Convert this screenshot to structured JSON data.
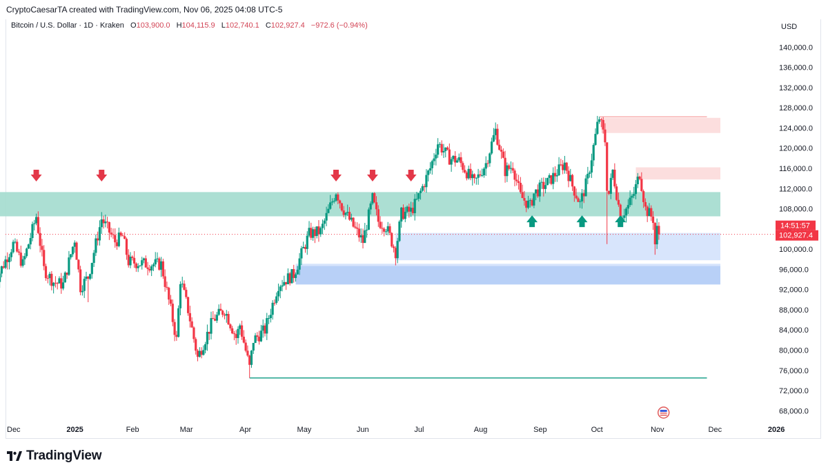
{
  "header": {
    "caption": "CryptoCaesarTA created with TradingView.com, Nov 06, 2025 04:08 UTC-5",
    "symbol": "Bitcoin / U.S. Dollar · 1D · Kraken",
    "open_label": "O",
    "open": "103,900.0",
    "high_label": "H",
    "high": "104,115.9",
    "low_label": "L",
    "low": "102,740.1",
    "close_label": "C",
    "close": "102,927.4",
    "change": "−972.6 (−0.94%)"
  },
  "brand": {
    "name": "TradingView",
    "logo_icon": "tradingview-logo-icon"
  },
  "colors": {
    "up": "#089981",
    "down": "#f23645",
    "resistance_zone": "#a8ddd1",
    "supply_zone": "#fcdcdc",
    "demand_zone": "#d6e4fc",
    "demand_zone_strong": "#b4cdf7",
    "level_line": "#089981",
    "last_price": "#f23645"
  },
  "chart_data": {
    "type": "candlestick",
    "title": "Bitcoin / U.S. Dollar · 1D · Kraken",
    "currency_label": "USD",
    "x_range": [
      "2024-12-01",
      "2026-01-05"
    ],
    "ylim": [
      66000,
      142500
    ],
    "y_ticks": [
      68000,
      72000,
      76000,
      80000,
      84000,
      88000,
      92000,
      96000,
      100000,
      104000,
      108000,
      112000,
      116000,
      120000,
      124000,
      128000,
      132000,
      136000,
      140000
    ],
    "y_tick_labels": [
      "68,000.0",
      "72,000.0",
      "76,000.0",
      "80,000.0",
      "84,000.0",
      "88,000.0",
      "92,000.0",
      "96,000.0",
      "100,000.0",
      "104,000.0",
      "108,000.0",
      "112,000.0",
      "116,000.0",
      "120,000.0",
      "124,000.0",
      "128,000.0",
      "132,000.0",
      "136,000.0",
      "140,000.0"
    ],
    "x_ticks": [
      {
        "date": "2024-12-01",
        "label": "Dec",
        "bold": false
      },
      {
        "date": "2025-01-01",
        "label": "2025",
        "bold": true
      },
      {
        "date": "2025-02-01",
        "label": "Feb",
        "bold": false
      },
      {
        "date": "2025-03-01",
        "label": "Mar",
        "bold": false
      },
      {
        "date": "2025-04-01",
        "label": "Apr",
        "bold": false
      },
      {
        "date": "2025-05-01",
        "label": "May",
        "bold": false
      },
      {
        "date": "2025-06-01",
        "label": "Jun",
        "bold": false
      },
      {
        "date": "2025-07-01",
        "label": "Jul",
        "bold": false
      },
      {
        "date": "2025-08-01",
        "label": "Aug",
        "bold": false
      },
      {
        "date": "2025-09-01",
        "label": "Sep",
        "bold": false
      },
      {
        "date": "2025-10-01",
        "label": "Oct",
        "bold": false
      },
      {
        "date": "2025-11-01",
        "label": "Nov",
        "bold": false
      },
      {
        "date": "2025-12-01",
        "label": "Dec",
        "bold": false
      },
      {
        "date": "2026-01-01",
        "label": "2026",
        "bold": true
      }
    ],
    "price_path": [
      [
        "2024-11-25",
        93000
      ],
      [
        "2024-12-05",
        101000
      ],
      [
        "2024-12-10",
        97000
      ],
      [
        "2024-12-17",
        106500
      ],
      [
        "2024-12-21",
        96000
      ],
      [
        "2024-12-26",
        93500
      ],
      [
        "2024-12-31",
        93000
      ],
      [
        "2025-01-06",
        102000
      ],
      [
        "2025-01-09",
        92500
      ],
      [
        "2025-01-13",
        94500
      ],
      [
        "2025-01-20",
        106000
      ],
      [
        "2025-01-27",
        101500
      ],
      [
        "2025-01-31",
        102500
      ],
      [
        "2025-02-03",
        97500
      ],
      [
        "2025-02-14",
        97000
      ],
      [
        "2025-02-20",
        97000
      ],
      [
        "2025-02-25",
        88000
      ],
      [
        "2025-02-28",
        82000
      ],
      [
        "2025-03-02",
        94000
      ],
      [
        "2025-03-06",
        88000
      ],
      [
        "2025-03-11",
        78500
      ],
      [
        "2025-03-19",
        86000
      ],
      [
        "2025-03-25",
        88000
      ],
      [
        "2025-03-31",
        82500
      ],
      [
        "2025-04-02",
        85000
      ],
      [
        "2025-04-07",
        76500
      ],
      [
        "2025-04-09",
        82000
      ],
      [
        "2025-04-15",
        84000
      ],
      [
        "2025-04-22",
        93000
      ],
      [
        "2025-04-30",
        95000
      ],
      [
        "2025-05-08",
        103000
      ],
      [
        "2025-05-14",
        103500
      ],
      [
        "2025-05-22",
        111500
      ],
      [
        "2025-05-25",
        108500
      ],
      [
        "2025-05-31",
        104500
      ],
      [
        "2025-06-05",
        101500
      ],
      [
        "2025-06-10",
        110000
      ],
      [
        "2025-06-13",
        105500
      ],
      [
        "2025-06-17",
        104500
      ],
      [
        "2025-06-22",
        99500
      ],
      [
        "2025-06-25",
        107000
      ],
      [
        "2025-06-30",
        107500
      ],
      [
        "2025-07-03",
        109500
      ],
      [
        "2025-07-10",
        116000
      ],
      [
        "2025-07-14",
        121000
      ],
      [
        "2025-07-20",
        118000
      ],
      [
        "2025-07-25",
        117500
      ],
      [
        "2025-08-02",
        113000
      ],
      [
        "2025-08-08",
        117000
      ],
      [
        "2025-08-13",
        123500
      ],
      [
        "2025-08-18",
        115500
      ],
      [
        "2025-08-22",
        116500
      ],
      [
        "2025-08-26",
        110500
      ],
      [
        "2025-08-31",
        108500
      ],
      [
        "2025-09-02",
        111000
      ],
      [
        "2025-09-10",
        113500
      ],
      [
        "2025-09-18",
        117000
      ],
      [
        "2025-09-22",
        112500
      ],
      [
        "2025-09-26",
        109000
      ],
      [
        "2025-09-30",
        114000
      ],
      [
        "2025-10-05",
        124500
      ],
      [
        "2025-10-06",
        126000
      ],
      [
        "2025-10-09",
        121500
      ],
      [
        "2025-10-10",
        112500
      ],
      [
        "2025-10-11",
        111000
      ],
      [
        "2025-10-13",
        115500
      ],
      [
        "2025-10-17",
        106500
      ],
      [
        "2025-10-21",
        108500
      ],
      [
        "2025-10-24",
        111000
      ],
      [
        "2025-10-27",
        115000
      ],
      [
        "2025-10-30",
        108000
      ],
      [
        "2025-11-03",
        106000
      ],
      [
        "2025-11-04",
        101000
      ],
      [
        "2025-11-05",
        103900
      ],
      [
        "2025-11-06",
        102927.4
      ]
    ],
    "last_price": 102927.4,
    "last_price_label": "102,927.4",
    "countdown_label": "14:51:57",
    "zones": [
      {
        "name": "resistance-zone",
        "kind": "resistance",
        "from": "2024-11-27",
        "to": "2025-12-08",
        "price_low": 106500,
        "price_high": 111300
      },
      {
        "name": "supply-zone-upper",
        "kind": "supply",
        "from": "2025-10-07",
        "to": "2025-12-08",
        "price_low": 123000,
        "price_high": 126000
      },
      {
        "name": "supply-zone-lower",
        "kind": "supply",
        "from": "2025-10-25",
        "to": "2025-12-08",
        "price_low": 113800,
        "price_high": 116200
      },
      {
        "name": "demand-zone-upper",
        "kind": "demand",
        "from": "2025-06-22",
        "to": "2025-12-08",
        "price_low": 97800,
        "price_high": 103200
      },
      {
        "name": "demand-zone-lower",
        "kind": "demand-strong",
        "from": "2025-05-01",
        "to": "2025-12-08",
        "price_low": 93000,
        "price_high": 96700
      }
    ],
    "level_lines": [
      {
        "name": "support-line-low",
        "price": 74500,
        "from": "2025-04-07",
        "to": "2025-12-01",
        "style": "solid"
      },
      {
        "name": "ath-line",
        "price": 126200,
        "from": "2025-10-06",
        "to": "2025-12-01",
        "style": "solid"
      }
    ],
    "down_arrows": [
      {
        "date": "2024-12-17",
        "price": 114500
      },
      {
        "date": "2025-01-20",
        "price": 114500
      },
      {
        "date": "2025-05-22",
        "price": 114500
      },
      {
        "date": "2025-06-10",
        "price": 114500
      },
      {
        "date": "2025-06-30",
        "price": 114500
      }
    ],
    "up_arrows": [
      {
        "date": "2025-09-01",
        "price": 105600
      },
      {
        "date": "2025-09-27",
        "price": 105600
      },
      {
        "date": "2025-10-17",
        "price": 105600
      }
    ]
  }
}
